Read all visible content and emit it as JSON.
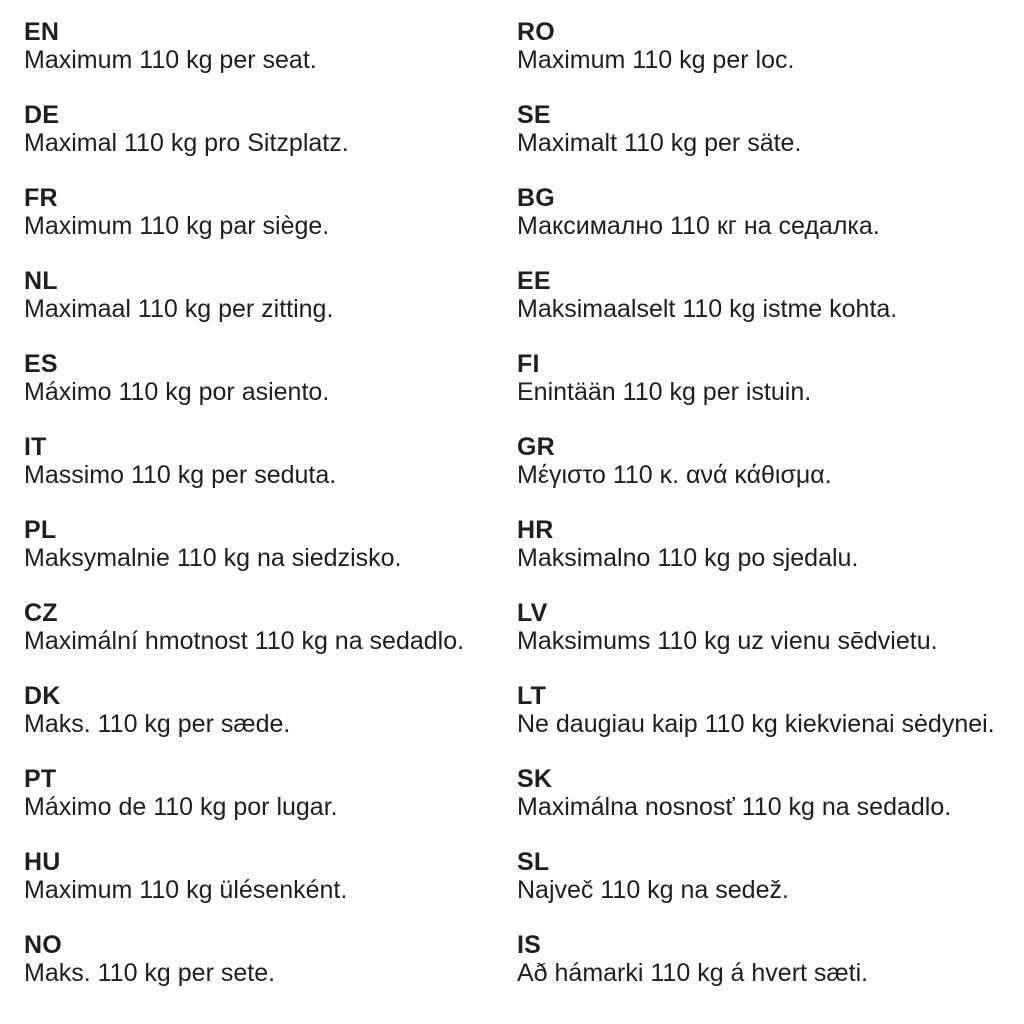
{
  "document": {
    "colors": {
      "text": "#1f1f1f",
      "background": "#ffffff"
    },
    "left_column": [
      {
        "code": "EN",
        "text": "Maximum 110 kg per seat."
      },
      {
        "code": "DE",
        "text": "Maximal 110 kg pro Sitzplatz."
      },
      {
        "code": "FR",
        "text": "Maximum 110 kg par siège."
      },
      {
        "code": "NL",
        "text": "Maximaal 110 kg per zitting."
      },
      {
        "code": "ES",
        "text": "Máximo 110 kg por asiento."
      },
      {
        "code": "IT",
        "text": "Massimo 110 kg per seduta."
      },
      {
        "code": "PL",
        "text": "Maksymalnie 110 kg na siedzisko."
      },
      {
        "code": "CZ",
        "text": "Maximální hmotnost 110 kg na sedadlo."
      },
      {
        "code": "DK",
        "text": "Maks. 110 kg per sæde."
      },
      {
        "code": "PT",
        "text": "Máximo de 110 kg por lugar."
      },
      {
        "code": "HU",
        "text": "Maximum 110 kg ülésenként."
      },
      {
        "code": "NO",
        "text": "Maks. 110 kg per sete."
      }
    ],
    "right_column": [
      {
        "code": "RO",
        "text": "Maximum 110 kg per loc."
      },
      {
        "code": "SE",
        "text": "Maximalt 110 kg per säte."
      },
      {
        "code": "BG",
        "text": "Максимално 110 кг на седалка."
      },
      {
        "code": "EE",
        "text": "Maksimaalselt 110 kg istme kohta."
      },
      {
        "code": "FI",
        "text": "Enintään 110 kg per istuin."
      },
      {
        "code": "GR",
        "text": "Μέγιστο 110 κ. ανά κάθισμα."
      },
      {
        "code": "HR",
        "text": "Maksimalno 110 kg po sjedalu."
      },
      {
        "code": "LV",
        "text": "Maksimums 110 kg uz vienu sēdvietu."
      },
      {
        "code": "LT",
        "text": "Ne daugiau kaip 110 kg kiekvienai sėdynei."
      },
      {
        "code": "SK",
        "text": "Maximálna nosnosť 110 kg na sedadlo."
      },
      {
        "code": "SL",
        "text": "Največ 110 kg na sedež."
      },
      {
        "code": "IS",
        "text": "Að hámarki 110 kg á hvert sæti."
      }
    ]
  }
}
